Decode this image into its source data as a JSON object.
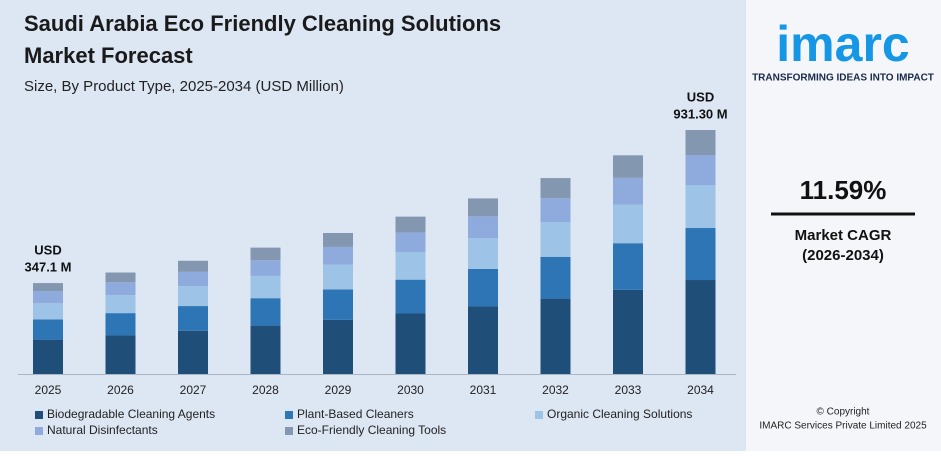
{
  "chart_data": {
    "type": "stacked-bar",
    "title": "Saudi Arabia Eco Friendly Cleaning Solutions Market Forecast",
    "subtitle": "Size, By Product Type, 2025-2034 (USD Million)",
    "categories": [
      "2025",
      "2026",
      "2027",
      "2028",
      "2029",
      "2030",
      "2031",
      "2032",
      "2033",
      "2034"
    ],
    "series": [
      {
        "name": "Biodegradable Cleaning Agents",
        "color": "#1f4e79",
        "values": [
          131.2,
          147.2,
          165.1,
          184.7,
          206.7,
          231.0,
          257.8,
          287.8,
          321.3,
          358.7
        ]
      },
      {
        "name": "Plant-Based Cleaners",
        "color": "#2e75b6",
        "values": [
          77.1,
          85.2,
          94.2,
          104.7,
          116.2,
          129.1,
          143.4,
          159.6,
          177.9,
          198.5
        ]
      },
      {
        "name": "Organic Cleaning Solutions",
        "color": "#9dc3e6",
        "values": [
          61.8,
          68.6,
          76.1,
          84.9,
          94.7,
          105.7,
          117.9,
          131.6,
          146.9,
          164.1
        ]
      },
      {
        "name": "Natural Disinfectants",
        "color": "#8faadc",
        "values": [
          46.2,
          49.2,
          54.5,
          60.3,
          67.3,
          74.5,
          82.5,
          91.9,
          102.6,
          114.6
        ]
      },
      {
        "name": "Eco-Friendly Cleaning Tools",
        "color": "#8497b0",
        "values": [
          30.8,
          37.1,
          42.3,
          47.7,
          53.3,
          60.3,
          68.6,
          76.9,
          85.9,
          95.4
        ]
      }
    ],
    "annotations": [
      {
        "category": 0,
        "lines": [
          "USD",
          "347.1 M"
        ]
      },
      {
        "category": 9,
        "lines": [
          "USD",
          "931.30 M"
        ]
      }
    ]
  },
  "sidebar": {
    "logo": "imarc",
    "tagline": "TRANSFORMING IDEAS INTO IMPACT",
    "cagr": "11.59%",
    "cagr_label": "Market CAGR",
    "cagr_period": "(2026-2034)",
    "copyright": "© Copyright",
    "company": "IMARC Services Private Limited 2025"
  }
}
